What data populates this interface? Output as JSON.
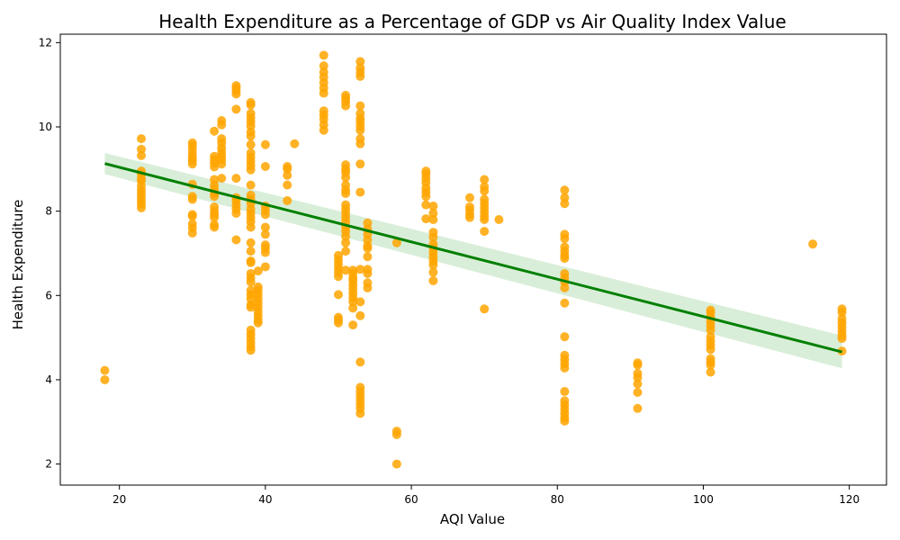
{
  "chart_data": {
    "type": "scatter",
    "title": "Health Expenditure as a Percentage of GDP vs Air Quality Index Value",
    "xlabel": "AQI Value",
    "ylabel": "Health Expenditure",
    "xlim": [
      11.9,
      125.1
    ],
    "ylim": [
      1.5,
      12.2
    ],
    "xticks": [
      20,
      40,
      60,
      80,
      100,
      120
    ],
    "yticks": [
      2,
      4,
      6,
      8,
      10,
      12
    ],
    "grid": false,
    "colors": {
      "points": "#ffa500",
      "trend": "#008000",
      "band": "#2ca02c"
    },
    "regression": {
      "x": [
        18,
        119
      ],
      "y": [
        9.13,
        4.66
      ],
      "band_upper": [
        9.38,
        5.05
      ],
      "band_lower": [
        8.88,
        4.27
      ]
    },
    "points": [
      [
        18,
        4.22
      ],
      [
        18,
        4.0
      ],
      [
        23,
        9.72
      ],
      [
        23,
        9.47
      ],
      [
        23,
        9.32
      ],
      [
        23,
        8.95
      ],
      [
        23,
        8.88
      ],
      [
        23,
        8.78
      ],
      [
        23,
        8.72
      ],
      [
        23,
        8.6
      ],
      [
        23,
        8.5
      ],
      [
        23,
        8.42
      ],
      [
        23,
        8.33
      ],
      [
        23,
        8.25
      ],
      [
        23,
        8.17
      ],
      [
        23,
        8.08
      ],
      [
        30,
        9.62
      ],
      [
        30,
        9.55
      ],
      [
        30,
        9.45
      ],
      [
        30,
        9.35
      ],
      [
        30,
        9.27
      ],
      [
        30,
        9.2
      ],
      [
        30,
        9.12
      ],
      [
        30,
        8.64
      ],
      [
        30,
        8.35
      ],
      [
        30,
        8.28
      ],
      [
        30,
        7.92
      ],
      [
        30,
        7.88
      ],
      [
        30,
        7.7
      ],
      [
        30,
        7.6
      ],
      [
        30,
        7.48
      ],
      [
        33,
        9.9
      ],
      [
        33,
        9.3
      ],
      [
        33,
        9.22
      ],
      [
        33,
        9.14
      ],
      [
        33,
        9.05
      ],
      [
        33,
        8.75
      ],
      [
        33,
        8.62
      ],
      [
        33,
        8.52
      ],
      [
        33,
        8.42
      ],
      [
        33,
        8.35
      ],
      [
        33,
        8.1
      ],
      [
        33,
        8.0
      ],
      [
        33,
        7.92
      ],
      [
        33,
        7.85
      ],
      [
        33,
        7.68
      ],
      [
        33,
        7.62
      ],
      [
        34,
        10.15
      ],
      [
        34,
        10.05
      ],
      [
        34,
        9.72
      ],
      [
        34,
        9.62
      ],
      [
        34,
        9.5
      ],
      [
        34,
        9.4
      ],
      [
        34,
        9.3
      ],
      [
        34,
        9.22
      ],
      [
        34,
        9.12
      ],
      [
        34,
        8.78
      ],
      [
        36,
        10.98
      ],
      [
        36,
        10.92
      ],
      [
        36,
        10.85
      ],
      [
        36,
        10.78
      ],
      [
        36,
        10.42
      ],
      [
        36,
        8.78
      ],
      [
        36,
        8.32
      ],
      [
        36,
        8.25
      ],
      [
        36,
        8.15
      ],
      [
        36,
        8.05
      ],
      [
        36,
        7.95
      ],
      [
        36,
        7.32
      ],
      [
        38,
        10.58
      ],
      [
        38,
        10.52
      ],
      [
        38,
        10.32
      ],
      [
        38,
        10.22
      ],
      [
        38,
        10.12
      ],
      [
        38,
        10.02
      ],
      [
        38,
        9.88
      ],
      [
        38,
        9.78
      ],
      [
        38,
        9.58
      ],
      [
        38,
        9.38
      ],
      [
        38,
        9.28
      ],
      [
        38,
        9.18
      ],
      [
        38,
        9.08
      ],
      [
        38,
        8.98
      ],
      [
        38,
        8.62
      ],
      [
        38,
        8.38
      ],
      [
        38,
        8.28
      ],
      [
        38,
        8.18
      ],
      [
        38,
        8.05
      ],
      [
        38,
        7.95
      ],
      [
        38,
        7.85
      ],
      [
        38,
        7.75
      ],
      [
        38,
        7.62
      ],
      [
        38,
        7.25
      ],
      [
        38,
        7.05
      ],
      [
        38,
        6.82
      ],
      [
        38,
        6.78
      ],
      [
        38,
        6.52
      ],
      [
        38,
        6.42
      ],
      [
        38,
        6.32
      ],
      [
        38,
        6.12
      ],
      [
        38,
        6.02
      ],
      [
        38,
        5.92
      ],
      [
        38,
        5.78
      ],
      [
        38,
        5.72
      ],
      [
        38,
        5.18
      ],
      [
        38,
        5.08
      ],
      [
        38,
        4.98
      ],
      [
        38,
        4.88
      ],
      [
        38,
        4.78
      ],
      [
        38,
        4.7
      ],
      [
        39,
        6.58
      ],
      [
        39,
        6.2
      ],
      [
        39,
        6.12
      ],
      [
        39,
        6.02
      ],
      [
        39,
        5.92
      ],
      [
        39,
        5.82
      ],
      [
        39,
        5.72
      ],
      [
        39,
        5.62
      ],
      [
        39,
        5.52
      ],
      [
        39,
        5.42
      ],
      [
        39,
        5.35
      ],
      [
        40,
        9.58
      ],
      [
        40,
        9.06
      ],
      [
        40,
        8.12
      ],
      [
        40,
        8.02
      ],
      [
        40,
        7.92
      ],
      [
        40,
        7.62
      ],
      [
        40,
        7.45
      ],
      [
        40,
        7.2
      ],
      [
        40,
        7.12
      ],
      [
        40,
        7.02
      ],
      [
        40,
        6.68
      ],
      [
        43,
        9.06
      ],
      [
        43,
        9.0
      ],
      [
        43,
        8.85
      ],
      [
        43,
        8.62
      ],
      [
        43,
        8.25
      ],
      [
        44,
        9.6
      ],
      [
        48,
        11.7
      ],
      [
        48,
        11.45
      ],
      [
        48,
        11.3
      ],
      [
        48,
        11.18
      ],
      [
        48,
        11.05
      ],
      [
        48,
        10.92
      ],
      [
        48,
        10.8
      ],
      [
        48,
        10.38
      ],
      [
        48,
        10.28
      ],
      [
        48,
        10.18
      ],
      [
        48,
        10.05
      ],
      [
        48,
        9.92
      ],
      [
        50,
        6.95
      ],
      [
        50,
        6.85
      ],
      [
        50,
        6.75
      ],
      [
        50,
        6.65
      ],
      [
        50,
        6.55
      ],
      [
        50,
        6.45
      ],
      [
        50,
        6.02
      ],
      [
        50,
        5.48
      ],
      [
        50,
        5.42
      ],
      [
        50,
        5.35
      ],
      [
        51,
        10.75
      ],
      [
        51,
        10.68
      ],
      [
        51,
        10.6
      ],
      [
        51,
        10.5
      ],
      [
        51,
        9.1
      ],
      [
        51,
        9.0
      ],
      [
        51,
        8.92
      ],
      [
        51,
        8.8
      ],
      [
        51,
        8.62
      ],
      [
        51,
        8.5
      ],
      [
        51,
        8.42
      ],
      [
        51,
        8.15
      ],
      [
        51,
        8.05
      ],
      [
        51,
        7.95
      ],
      [
        51,
        7.85
      ],
      [
        51,
        7.75
      ],
      [
        51,
        7.62
      ],
      [
        51,
        7.52
      ],
      [
        51,
        7.4
      ],
      [
        51,
        7.25
      ],
      [
        51,
        7.05
      ],
      [
        51,
        6.6
      ],
      [
        52,
        6.6
      ],
      [
        52,
        6.52
      ],
      [
        52,
        6.42
      ],
      [
        52,
        6.35
      ],
      [
        52,
        6.25
      ],
      [
        52,
        6.15
      ],
      [
        52,
        6.05
      ],
      [
        52,
        5.95
      ],
      [
        52,
        5.85
      ],
      [
        52,
        5.7
      ],
      [
        52,
        5.3
      ],
      [
        53,
        11.55
      ],
      [
        53,
        11.4
      ],
      [
        53,
        11.3
      ],
      [
        53,
        11.2
      ],
      [
        53,
        10.5
      ],
      [
        53,
        10.32
      ],
      [
        53,
        10.2
      ],
      [
        53,
        10.12
      ],
      [
        53,
        10.02
      ],
      [
        53,
        9.92
      ],
      [
        53,
        9.72
      ],
      [
        53,
        9.6
      ],
      [
        53,
        9.12
      ],
      [
        53,
        8.45
      ],
      [
        53,
        6.62
      ],
      [
        53,
        5.85
      ],
      [
        53,
        5.52
      ],
      [
        53,
        4.42
      ],
      [
        53,
        3.82
      ],
      [
        53,
        3.72
      ],
      [
        53,
        3.62
      ],
      [
        53,
        3.52
      ],
      [
        53,
        3.42
      ],
      [
        53,
        3.32
      ],
      [
        53,
        3.2
      ],
      [
        54,
        7.72
      ],
      [
        54,
        7.58
      ],
      [
        54,
        7.45
      ],
      [
        54,
        7.32
      ],
      [
        54,
        7.18
      ],
      [
        54,
        7.12
      ],
      [
        54,
        6.92
      ],
      [
        54,
        6.62
      ],
      [
        54,
        6.52
      ],
      [
        54,
        6.3
      ],
      [
        54,
        6.18
      ],
      [
        58,
        7.25
      ],
      [
        58,
        2.78
      ],
      [
        58,
        2.7
      ],
      [
        58,
        2.0
      ],
      [
        62,
        8.95
      ],
      [
        62,
        8.88
      ],
      [
        62,
        8.78
      ],
      [
        62,
        8.68
      ],
      [
        62,
        8.55
      ],
      [
        62,
        8.45
      ],
      [
        62,
        8.35
      ],
      [
        62,
        8.15
      ],
      [
        62,
        7.82
      ],
      [
        63,
        8.12
      ],
      [
        63,
        7.95
      ],
      [
        63,
        7.8
      ],
      [
        63,
        7.5
      ],
      [
        63,
        7.38
      ],
      [
        63,
        7.22
      ],
      [
        63,
        7.12
      ],
      [
        63,
        7.02
      ],
      [
        63,
        6.92
      ],
      [
        63,
        6.82
      ],
      [
        63,
        6.72
      ],
      [
        63,
        6.55
      ],
      [
        63,
        6.35
      ],
      [
        68,
        8.32
      ],
      [
        68,
        8.1
      ],
      [
        68,
        8.02
      ],
      [
        68,
        7.92
      ],
      [
        68,
        7.85
      ],
      [
        70,
        8.75
      ],
      [
        70,
        8.58
      ],
      [
        70,
        8.48
      ],
      [
        70,
        8.28
      ],
      [
        70,
        8.18
      ],
      [
        70,
        8.08
      ],
      [
        70,
        7.98
      ],
      [
        70,
        7.88
      ],
      [
        70,
        7.8
      ],
      [
        70,
        7.52
      ],
      [
        70,
        5.68
      ],
      [
        72,
        7.8
      ],
      [
        81,
        8.5
      ],
      [
        81,
        8.32
      ],
      [
        81,
        8.18
      ],
      [
        81,
        7.45
      ],
      [
        81,
        7.35
      ],
      [
        81,
        7.15
      ],
      [
        81,
        7.05
      ],
      [
        81,
        6.95
      ],
      [
        81,
        6.88
      ],
      [
        81,
        6.52
      ],
      [
        81,
        6.42
      ],
      [
        81,
        6.32
      ],
      [
        81,
        6.18
      ],
      [
        81,
        5.82
      ],
      [
        81,
        5.02
      ],
      [
        81,
        4.58
      ],
      [
        81,
        4.48
      ],
      [
        81,
        4.38
      ],
      [
        81,
        4.28
      ],
      [
        81,
        3.72
      ],
      [
        81,
        3.5
      ],
      [
        81,
        3.4
      ],
      [
        81,
        3.3
      ],
      [
        81,
        3.2
      ],
      [
        81,
        3.1
      ],
      [
        81,
        3.02
      ],
      [
        91,
        4.4
      ],
      [
        91,
        4.35
      ],
      [
        91,
        4.15
      ],
      [
        91,
        4.05
      ],
      [
        91,
        3.9
      ],
      [
        91,
        3.7
      ],
      [
        91,
        3.32
      ],
      [
        101,
        5.65
      ],
      [
        101,
        5.58
      ],
      [
        101,
        5.48
      ],
      [
        101,
        5.38
      ],
      [
        101,
        5.28
      ],
      [
        101,
        5.18
      ],
      [
        101,
        5.02
      ],
      [
        101,
        4.92
      ],
      [
        101,
        4.82
      ],
      [
        101,
        4.72
      ],
      [
        101,
        4.5
      ],
      [
        101,
        4.42
      ],
      [
        101,
        4.35
      ],
      [
        101,
        4.18
      ],
      [
        115,
        7.22
      ],
      [
        119,
        5.68
      ],
      [
        119,
        5.6
      ],
      [
        119,
        5.45
      ],
      [
        119,
        5.35
      ],
      [
        119,
        5.25
      ],
      [
        119,
        5.15
      ],
      [
        119,
        5.05
      ],
      [
        119,
        4.98
      ],
      [
        119,
        4.68
      ]
    ]
  }
}
